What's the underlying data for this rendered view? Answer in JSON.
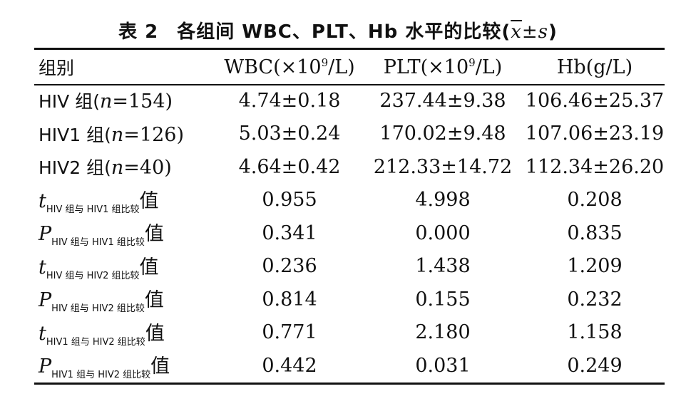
{
  "caption": {
    "number": "表 2",
    "title": "各组间 WBC、PLT、Hb 水平的比较(",
    "xbar": "x",
    "stat_tail": "±s",
    "close": ")"
  },
  "table": {
    "header": {
      "group": "组别",
      "wbc_pre": "WBC(×10",
      "wbc_exp": "9",
      "wbc_post": "/L)",
      "plt_pre": "PLT(×10",
      "plt_exp": "9",
      "plt_post": "/L)",
      "hb": "Hb(g/L)"
    },
    "groups": [
      {
        "name": "HIV 组(",
        "n_label": "n",
        "n_value": "=154)",
        "wbc": "4.74±0.18",
        "plt": "237.44±9.38",
        "hb": "106.46±25.37"
      },
      {
        "name": "HIV1 组(",
        "n_label": "n",
        "n_value": "=126)",
        "wbc": "5.03±0.24",
        "plt": "170.02±9.48",
        "hb": "107.06±23.19"
      },
      {
        "name": "HIV2 组(",
        "n_label": "n",
        "n_value": "=40)",
        "wbc": "4.64±0.42",
        "plt": "212.33±14.72",
        "hb": "112.34±26.20"
      }
    ],
    "stats": [
      {
        "symbol": "t",
        "subscript": "HIV 组与 HIV1 组比较",
        "suffix": "值",
        "wbc": "0.955",
        "plt": "4.998",
        "hb": "0.208"
      },
      {
        "symbol": "P",
        "subscript": "HIV 组与 HIV1 组比较",
        "suffix": "值",
        "wbc": "0.341",
        "plt": "0.000",
        "hb": "0.835"
      },
      {
        "symbol": "t",
        "subscript": "HIV 组与 HIV2 组比较",
        "suffix": "值",
        "wbc": "0.236",
        "plt": "1.438",
        "hb": "1.209"
      },
      {
        "symbol": "P",
        "subscript": "HIV 组与 HIV2 组比较",
        "suffix": "值",
        "wbc": "0.814",
        "plt": "0.155",
        "hb": "0.232"
      },
      {
        "symbol": "t",
        "subscript": "HIV1 组与 HIV2 组比较",
        "suffix": "值",
        "wbc": "0.771",
        "plt": "2.180",
        "hb": "1.158"
      },
      {
        "symbol": "P",
        "subscript": "HIV1 组与 HIV2 组比较",
        "suffix": "值",
        "wbc": "0.442",
        "plt": "0.031",
        "hb": "0.249"
      }
    ]
  }
}
